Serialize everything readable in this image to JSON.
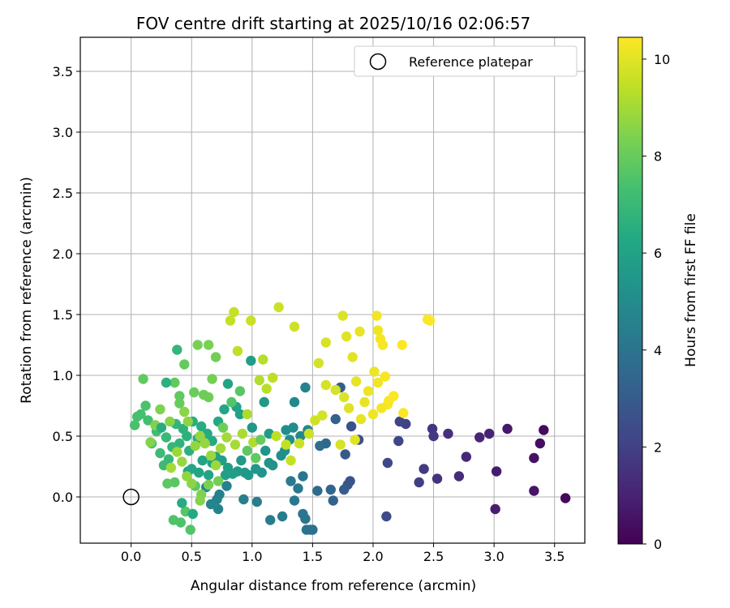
{
  "chart_data": {
    "type": "scatter",
    "title": "FOV centre drift starting at 2025/10/16 02:06:57",
    "xlabel": "Angular distance from reference (arcmin)",
    "ylabel": "Rotation from reference (arcmin)",
    "xlim": [
      -0.42,
      3.75
    ],
    "ylim": [
      -0.38,
      3.78
    ],
    "xticks": [
      "0.0",
      "0.5",
      "1.0",
      "1.5",
      "2.0",
      "2.5",
      "3.0",
      "3.5"
    ],
    "yticks": [
      "0.0",
      "0.5",
      "1.0",
      "1.5",
      "2.0",
      "2.5",
      "3.0",
      "3.5"
    ],
    "grid": true,
    "legend": {
      "position": "top-right",
      "entries": [
        "Reference platepar"
      ]
    },
    "reference_point": {
      "x": 0.0,
      "y": 0.0
    },
    "colorbar": {
      "label": "Hours from first FF file",
      "colormap": "viridis",
      "range": [
        0,
        10.45
      ],
      "ticks": [
        "0",
        "2",
        "4",
        "6",
        "8",
        "10"
      ]
    },
    "points": [
      [
        3.59,
        -0.01,
        0.2
      ],
      [
        3.41,
        0.55,
        0.3
      ],
      [
        3.38,
        0.44,
        0.4
      ],
      [
        3.33,
        0.32,
        0.5
      ],
      [
        3.33,
        0.05,
        0.6
      ],
      [
        3.11,
        0.56,
        0.7
      ],
      [
        3.02,
        0.21,
        0.8
      ],
      [
        3.01,
        -0.1,
        0.9
      ],
      [
        2.96,
        0.52,
        1.0
      ],
      [
        2.88,
        0.49,
        1.1
      ],
      [
        2.77,
        0.33,
        1.2
      ],
      [
        2.71,
        0.17,
        1.3
      ],
      [
        2.62,
        0.52,
        1.4
      ],
      [
        2.53,
        0.15,
        1.5
      ],
      [
        2.49,
        0.56,
        1.6
      ],
      [
        2.5,
        0.5,
        1.7
      ],
      [
        2.42,
        0.23,
        1.8
      ],
      [
        2.38,
        0.12,
        1.9
      ],
      [
        2.27,
        0.6,
        2.0
      ],
      [
        2.22,
        0.62,
        2.1
      ],
      [
        2.21,
        0.46,
        2.2
      ],
      [
        2.12,
        0.28,
        2.3
      ],
      [
        2.11,
        -0.16,
        2.4
      ],
      [
        1.88,
        0.47,
        2.5
      ],
      [
        1.82,
        0.58,
        2.6
      ],
      [
        1.81,
        0.13,
        2.7
      ],
      [
        1.79,
        0.1,
        2.8
      ],
      [
        1.77,
        0.35,
        2.9
      ],
      [
        1.76,
        0.06,
        3.0
      ],
      [
        1.73,
        0.9,
        3.1
      ],
      [
        1.69,
        0.64,
        3.2
      ],
      [
        1.67,
        -0.03,
        3.3
      ],
      [
        1.65,
        0.06,
        3.4
      ],
      [
        1.61,
        0.44,
        3.5
      ],
      [
        1.54,
        0.05,
        3.6
      ],
      [
        1.56,
        0.42,
        3.7
      ],
      [
        1.5,
        -0.27,
        3.8
      ],
      [
        1.48,
        -0.27,
        3.9
      ],
      [
        1.45,
        -0.27,
        3.95
      ],
      [
        1.44,
        -0.18,
        4.0
      ],
      [
        1.42,
        -0.14,
        4.05
      ],
      [
        1.42,
        0.17,
        4.1
      ],
      [
        1.38,
        0.07,
        4.15
      ],
      [
        1.35,
        -0.03,
        4.2
      ],
      [
        1.32,
        0.13,
        4.25
      ],
      [
        1.25,
        -0.16,
        4.3
      ],
      [
        1.15,
        -0.19,
        4.35
      ],
      [
        1.04,
        -0.04,
        4.4
      ],
      [
        0.93,
        -0.02,
        4.45
      ],
      [
        0.79,
        0.09,
        4.5
      ],
      [
        0.73,
        0.02,
        4.55
      ],
      [
        0.71,
        -0.02,
        4.6
      ],
      [
        0.72,
        -0.1,
        4.65
      ],
      [
        0.66,
        -0.06,
        4.7
      ],
      [
        0.62,
        0.08,
        4.75
      ],
      [
        1.44,
        0.9,
        4.6
      ],
      [
        1.46,
        0.55,
        4.7
      ],
      [
        1.4,
        0.5,
        4.8
      ],
      [
        1.35,
        0.78,
        4.9
      ],
      [
        1.34,
        0.57,
        5.0
      ],
      [
        1.31,
        0.47,
        5.05
      ],
      [
        1.28,
        0.55,
        5.1
      ],
      [
        1.27,
        0.38,
        5.15
      ],
      [
        1.24,
        0.34,
        5.2
      ],
      [
        1.17,
        0.26,
        5.25
      ],
      [
        1.14,
        0.28,
        5.3
      ],
      [
        1.11,
        0.38,
        5.35
      ],
      [
        1.08,
        0.2,
        5.4
      ],
      [
        1.03,
        0.23,
        5.45
      ],
      [
        1.0,
        0.57,
        5.5
      ],
      [
        0.97,
        0.18,
        5.55
      ],
      [
        0.94,
        0.2,
        5.6
      ],
      [
        0.91,
        0.3,
        5.65
      ],
      [
        0.88,
        0.21,
        5.7
      ],
      [
        0.84,
        0.19,
        5.75
      ],
      [
        0.8,
        0.24,
        5.8
      ],
      [
        0.78,
        0.18,
        5.85
      ],
      [
        0.75,
        0.3,
        5.9
      ],
      [
        0.7,
        0.33,
        5.95
      ],
      [
        0.67,
        0.28,
        6.0
      ],
      [
        0.64,
        0.18,
        6.05
      ],
      [
        0.59,
        0.3,
        6.1
      ],
      [
        0.56,
        0.2,
        6.15
      ],
      [
        0.5,
        0.23,
        6.2
      ],
      [
        0.47,
        0.21,
        6.25
      ],
      [
        1.1,
        0.78,
        5.6
      ],
      [
        1.14,
        0.52,
        5.7
      ],
      [
        0.99,
        1.12,
        5.8
      ],
      [
        0.9,
        0.68,
        5.9
      ],
      [
        0.87,
        0.74,
        6.0
      ],
      [
        0.8,
        0.93,
        6.1
      ],
      [
        0.77,
        0.72,
        6.2
      ],
      [
        0.72,
        0.62,
        6.3
      ],
      [
        0.67,
        0.46,
        6.35
      ],
      [
        0.63,
        0.52,
        6.4
      ],
      [
        0.58,
        0.58,
        6.45
      ],
      [
        0.55,
        0.48,
        6.5
      ],
      [
        0.51,
        0.62,
        6.55
      ],
      [
        0.48,
        0.38,
        6.6
      ],
      [
        0.46,
        0.5,
        6.65
      ],
      [
        0.43,
        0.56,
        6.7
      ],
      [
        0.4,
        0.44,
        6.75
      ],
      [
        0.37,
        0.6,
        6.8
      ],
      [
        0.38,
        1.21,
        6.85
      ],
      [
        0.34,
        0.41,
        6.9
      ],
      [
        0.31,
        0.31,
        6.95
      ],
      [
        0.29,
        0.49,
        7.0
      ],
      [
        0.27,
        0.26,
        7.05
      ],
      [
        0.24,
        0.36,
        7.1
      ],
      [
        0.21,
        0.54,
        7.15
      ],
      [
        0.17,
        0.44,
        7.2
      ],
      [
        0.14,
        0.63,
        7.25
      ],
      [
        0.08,
        0.68,
        7.3
      ],
      [
        0.05,
        0.66,
        7.35
      ],
      [
        0.03,
        0.59,
        7.4
      ],
      [
        0.12,
        0.75,
        7.45
      ],
      [
        0.41,
        -0.21,
        7.5
      ],
      [
        0.35,
        -0.19,
        7.55
      ],
      [
        0.49,
        -0.27,
        7.6
      ],
      [
        0.45,
        -0.12,
        7.65
      ],
      [
        0.53,
        0.09,
        7.7
      ],
      [
        0.36,
        0.12,
        7.75
      ],
      [
        0.3,
        0.11,
        7.8
      ],
      [
        0.4,
        0.83,
        7.85
      ],
      [
        0.36,
        0.94,
        7.9
      ],
      [
        0.44,
        1.09,
        7.95
      ],
      [
        0.4,
        0.77,
        8.0
      ],
      [
        0.52,
        0.86,
        8.05
      ],
      [
        0.6,
        0.84,
        8.1
      ],
      [
        0.64,
        0.82,
        8.15
      ],
      [
        0.7,
        1.15,
        8.2
      ],
      [
        0.67,
        0.97,
        8.25
      ],
      [
        0.55,
        1.25,
        8.3
      ],
      [
        0.64,
        1.25,
        8.35
      ],
      [
        0.24,
        0.72,
        8.4
      ],
      [
        0.2,
        0.59,
        8.45
      ],
      [
        0.16,
        0.45,
        8.5
      ],
      [
        0.32,
        0.62,
        8.55
      ],
      [
        0.44,
        0.7,
        8.6
      ],
      [
        0.47,
        0.62,
        8.65
      ],
      [
        0.53,
        0.42,
        8.7
      ],
      [
        0.57,
        0.5,
        8.75
      ],
      [
        0.61,
        0.44,
        8.8
      ],
      [
        0.66,
        0.34,
        8.85
      ],
      [
        0.7,
        0.26,
        8.9
      ],
      [
        0.74,
        0.4,
        8.95
      ],
      [
        0.79,
        0.49,
        9.0
      ],
      [
        0.86,
        0.43,
        9.05
      ],
      [
        0.92,
        0.52,
        9.1
      ],
      [
        0.96,
        0.68,
        9.15
      ],
      [
        1.01,
        0.45,
        9.2
      ],
      [
        1.06,
        0.96,
        9.25
      ],
      [
        1.09,
        1.13,
        9.3
      ],
      [
        1.12,
        0.89,
        9.35
      ],
      [
        1.17,
        0.98,
        9.4
      ],
      [
        0.88,
        1.2,
        9.45
      ],
      [
        0.82,
        1.45,
        9.5
      ],
      [
        0.85,
        1.52,
        9.55
      ],
      [
        0.99,
        1.45,
        9.6
      ],
      [
        1.22,
        1.56,
        9.65
      ],
      [
        1.35,
        1.4,
        9.7
      ],
      [
        1.55,
        1.1,
        9.75
      ],
      [
        1.61,
        0.92,
        9.8
      ],
      [
        1.61,
        1.27,
        9.85
      ],
      [
        1.75,
        1.49,
        9.9
      ],
      [
        1.78,
        1.32,
        9.95
      ],
      [
        1.83,
        1.15,
        10.0
      ],
      [
        1.86,
        0.95,
        10.05
      ],
      [
        1.89,
        1.36,
        10.1
      ],
      [
        2.01,
        1.03,
        10.15
      ],
      [
        2.04,
        1.37,
        10.2
      ],
      [
        2.03,
        1.49,
        10.25
      ],
      [
        2.06,
        1.3,
        10.3
      ],
      [
        2.08,
        1.25,
        10.35
      ],
      [
        2.12,
        0.76,
        10.4
      ],
      [
        2.17,
        0.83,
        10.42
      ],
      [
        2.24,
        1.25,
        10.43
      ],
      [
        2.45,
        1.46,
        10.44
      ],
      [
        2.47,
        1.45,
        10.45
      ],
      [
        1.2,
        0.5,
        9.4
      ],
      [
        1.28,
        0.43,
        9.5
      ],
      [
        1.32,
        0.3,
        9.55
      ],
      [
        1.39,
        0.44,
        9.6
      ],
      [
        1.47,
        0.52,
        9.65
      ],
      [
        1.52,
        0.63,
        9.7
      ],
      [
        1.58,
        0.67,
        9.75
      ],
      [
        1.69,
        0.88,
        9.8
      ],
      [
        1.73,
        0.43,
        9.85
      ],
      [
        1.76,
        0.82,
        9.9
      ],
      [
        1.8,
        0.73,
        9.95
      ],
      [
        1.85,
        0.47,
        10.0
      ],
      [
        1.9,
        0.64,
        10.05
      ],
      [
        1.93,
        0.78,
        10.1
      ],
      [
        1.96,
        0.87,
        10.15
      ],
      [
        2.0,
        0.68,
        10.2
      ],
      [
        2.04,
        0.94,
        10.25
      ],
      [
        2.07,
        0.73,
        10.3
      ],
      [
        2.1,
        0.99,
        10.35
      ],
      [
        2.13,
        0.79,
        10.38
      ],
      [
        2.25,
        0.69,
        10.4
      ],
      [
        0.83,
        0.78,
        7.6
      ],
      [
        0.9,
        0.87,
        7.7
      ],
      [
        0.96,
        0.38,
        7.8
      ],
      [
        1.03,
        0.32,
        7.9
      ],
      [
        1.07,
        0.47,
        8.0
      ],
      [
        0.76,
        0.57,
        8.1
      ],
      [
        0.72,
        0.13,
        8.2
      ],
      [
        0.64,
        0.1,
        8.3
      ],
      [
        0.58,
        0.02,
        8.4
      ],
      [
        0.57,
        -0.03,
        8.5
      ],
      [
        0.5,
        0.11,
        8.6
      ],
      [
        0.46,
        0.17,
        8.7
      ],
      [
        0.42,
        0.29,
        8.8
      ],
      [
        0.38,
        0.37,
        8.9
      ],
      [
        0.33,
        0.24,
        9.0
      ],
      [
        0.25,
        0.57,
        6.5
      ],
      [
        0.29,
        0.94,
        6.6
      ],
      [
        0.1,
        0.97,
        7.9
      ],
      [
        0.42,
        -0.05,
        6.4
      ],
      [
        0.51,
        -0.14,
        6.3
      ]
    ]
  }
}
